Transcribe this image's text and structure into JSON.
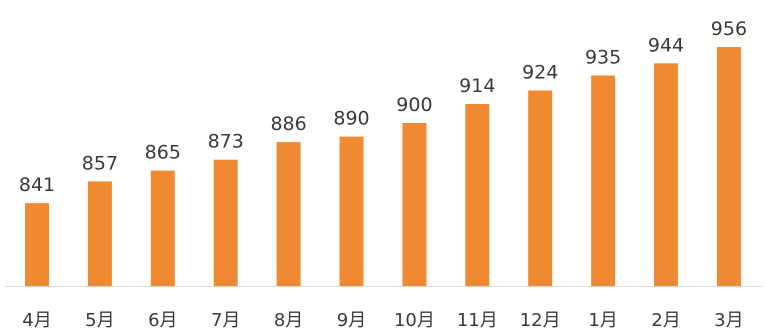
{
  "chart_data": {
    "type": "bar",
    "categories": [
      "4月",
      "5月",
      "6月",
      "7月",
      "8月",
      "9月",
      "10月",
      "11月",
      "12月",
      "1月",
      "2月",
      "3月"
    ],
    "values": [
      841,
      857,
      865,
      873,
      886,
      890,
      900,
      914,
      924,
      935,
      944,
      956
    ],
    "title": "",
    "xlabel": "",
    "ylabel": "",
    "grid": false,
    "legend": "none",
    "colors": {
      "bar": "#f08a32",
      "text": "#3a3a3a",
      "axis": "#d9d9d9"
    }
  }
}
